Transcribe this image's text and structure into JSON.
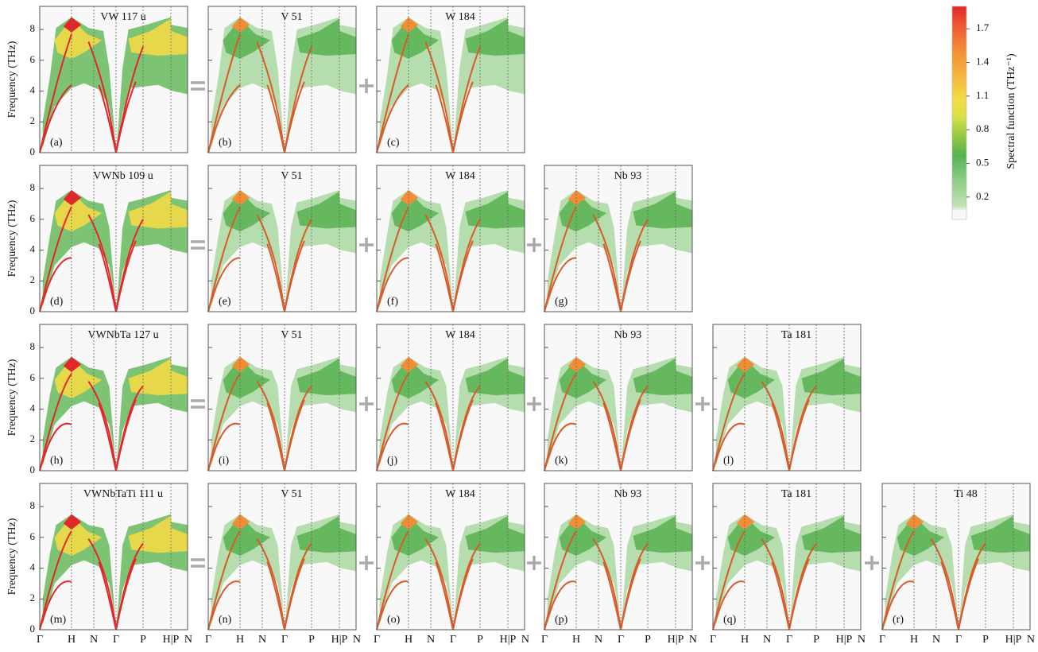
{
  "chart_data": {
    "type": "heatmap",
    "y_label": "Frequency (THz)",
    "ylim": [
      0,
      9.5
    ],
    "yticks": [
      0,
      2,
      4,
      6,
      8
    ],
    "x_labels": [
      "Γ",
      "H",
      "N",
      "Γ",
      "P",
      "H|P",
      "N"
    ],
    "rows": [
      {
        "panels": [
          {
            "title": "VW 117 u",
            "label": "(a)"
          },
          {
            "title": "V 51",
            "label": "(b)"
          },
          {
            "title": "W 184",
            "label": "(c)"
          }
        ]
      },
      {
        "panels": [
          {
            "title": "VWNb 109 u",
            "label": "(d)"
          },
          {
            "title": "V 51",
            "label": "(e)"
          },
          {
            "title": "W 184",
            "label": "(f)"
          },
          {
            "title": "Nb 93",
            "label": "(g)"
          }
        ]
      },
      {
        "panels": [
          {
            "title": "VWNbTa 127 u",
            "label": "(h)"
          },
          {
            "title": "V 51",
            "label": "(i)"
          },
          {
            "title": "W 184",
            "label": "(j)"
          },
          {
            "title": "Nb 93",
            "label": "(k)"
          },
          {
            "title": "Ta 181",
            "label": "(l)"
          }
        ]
      },
      {
        "panels": [
          {
            "title": "VWNbTaTi 111 u",
            "label": "(m)"
          },
          {
            "title": "V 51",
            "label": "(n)"
          },
          {
            "title": "W 184",
            "label": "(o)"
          },
          {
            "title": "Nb 93",
            "label": "(p)"
          },
          {
            "title": "Ta 181",
            "label": "(q)"
          },
          {
            "title": "Ti 48",
            "label": "(r)"
          }
        ]
      }
    ],
    "colorbar": {
      "label": "Spectral function (THz⁻¹)",
      "lim": [
        0,
        1.9
      ],
      "ticks": [
        0.2,
        0.5,
        0.8,
        1.1,
        1.4,
        1.7
      ]
    }
  }
}
